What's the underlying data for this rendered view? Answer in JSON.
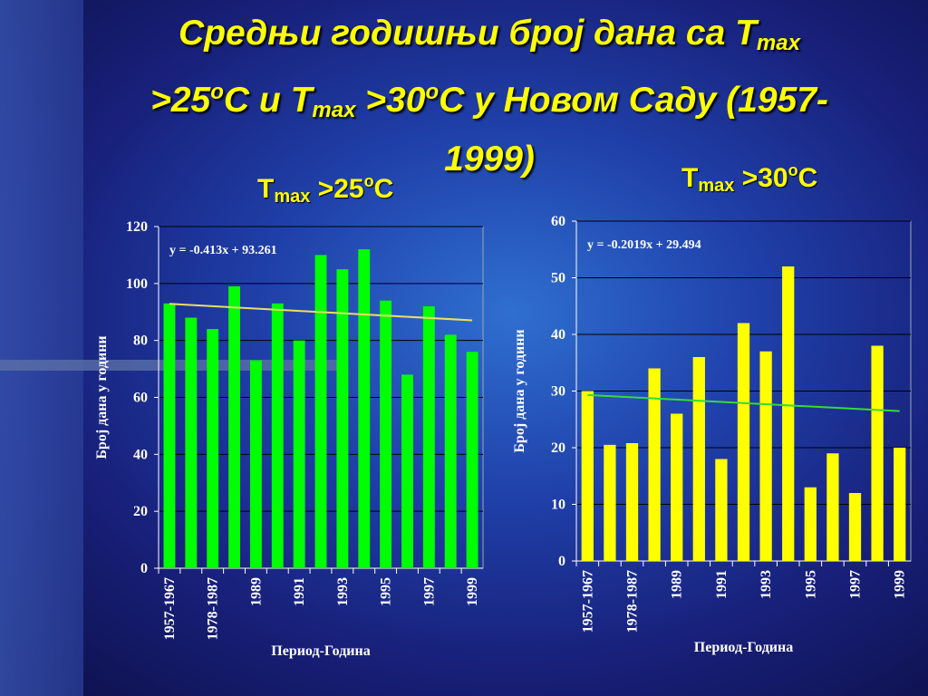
{
  "title": [
    "Средњи годишњи број дана са T",
    "max",
    ">25",
    "o",
    "C и T",
    "max",
    " >30",
    "o",
    "C у Новом Саду (1957-",
    "1999)"
  ],
  "chart_data": [
    {
      "type": "bar",
      "title": [
        "T",
        "max",
        " >25",
        "o",
        "C"
      ],
      "categories": [
        "1957-1967",
        null,
        "1978-1987",
        null,
        "1989",
        null,
        "1991",
        null,
        "1993",
        null,
        "1995",
        null,
        "1997",
        null,
        "1999"
      ],
      "values": [
        93,
        88,
        84,
        99,
        73,
        93,
        80,
        110,
        105,
        112,
        94,
        68,
        92,
        82,
        76
      ],
      "color": "#00ff00",
      "ylim": [
        0,
        120
      ],
      "yticks": [
        0,
        20,
        40,
        60,
        80,
        100,
        120
      ],
      "grid": true,
      "x_label": "Период-Година",
      "y_label": "Број дана у години",
      "trendline": {
        "label": "y = -0.413x + 93.261",
        "slope": -0.413,
        "intercept": 93.261,
        "color": "#e8e060"
      }
    },
    {
      "type": "bar",
      "title": [
        "T",
        "max",
        " >30",
        "o",
        "C"
      ],
      "categories": [
        "1957-1967",
        null,
        "1978-1987",
        null,
        "1989",
        null,
        "1991",
        null,
        "1993",
        null,
        "1995",
        null,
        "1997",
        null,
        "1999"
      ],
      "values": [
        30,
        20.5,
        20.8,
        34,
        26,
        36,
        18,
        42,
        37,
        52,
        13,
        19,
        12,
        38,
        20
      ],
      "color": "#ffff00",
      "ylim": [
        0,
        60
      ],
      "yticks": [
        0,
        10,
        20,
        30,
        40,
        50,
        60
      ],
      "grid": true,
      "x_label": "Период-Година",
      "y_label": "Број дана у години",
      "trendline": {
        "label": "y = -0.2019x + 29.494",
        "slope": -0.2019,
        "intercept": 29.494,
        "color": "#33dd33"
      }
    }
  ]
}
